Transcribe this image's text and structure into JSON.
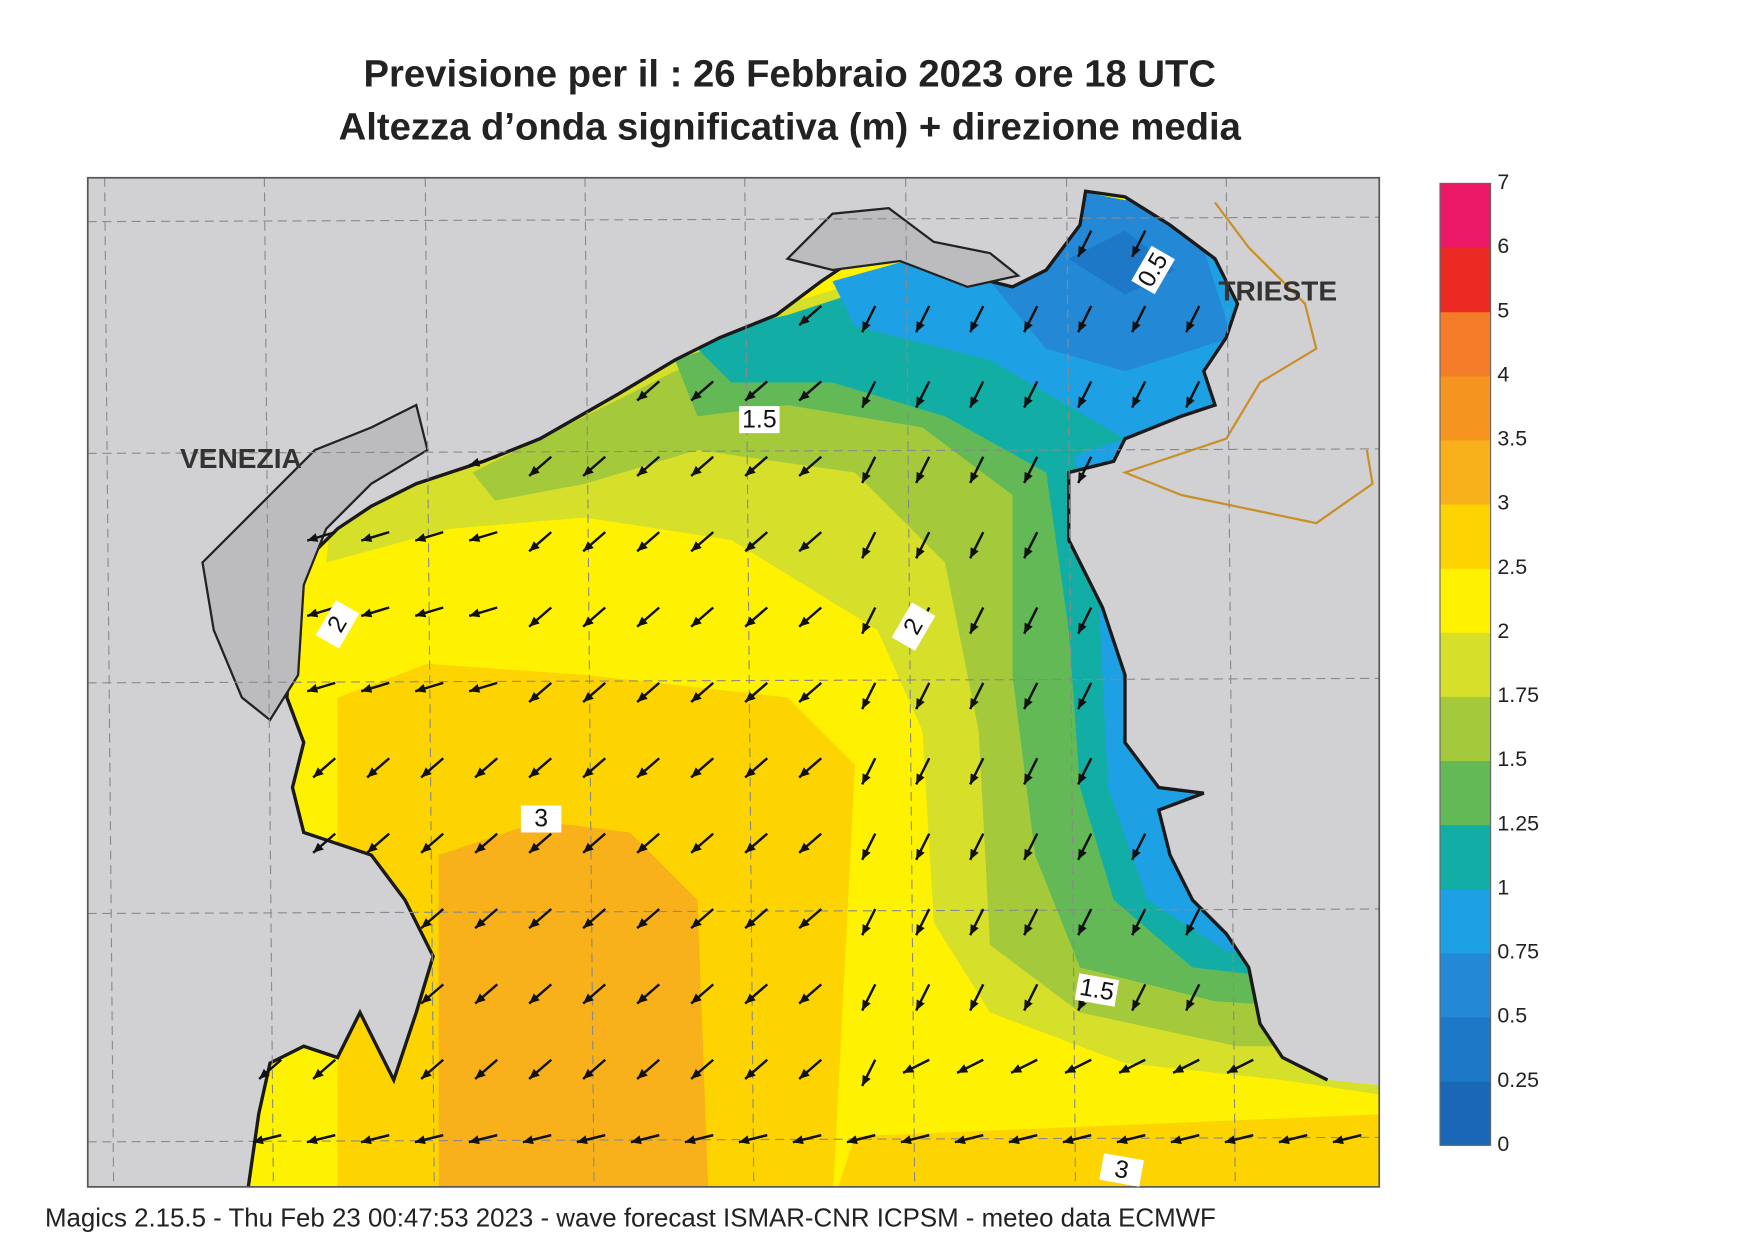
{
  "title": [
    "Previsione per il  :  26  Febbraio 2023   ore 18 UTC",
    "Altezza d’onda significativa (m) + direzione media"
  ],
  "places": [
    "VENEZIA",
    "TRIESTE"
  ],
  "contour_labels": [
    "0.5",
    "1.5",
    "2",
    "2",
    "3",
    "1.5",
    "3"
  ],
  "legend": {
    "ticks": [
      "0",
      "0.25",
      "0.5",
      "0.75",
      "1",
      "1.25",
      "1.5",
      "1.75",
      "2",
      "2.5",
      "3",
      "3.5",
      "4",
      "5",
      "6",
      "7"
    ],
    "colors": [
      "#1a67b8",
      "#1e78c8",
      "#2388d6",
      "#1ea0e4",
      "#12aea6",
      "#62b955",
      "#a4c93a",
      "#d6df2a",
      "#fff200",
      "#fdd300",
      "#f8b01b",
      "#f59520",
      "#f47b28",
      "#ec2a24",
      "#ea1867"
    ]
  },
  "footer": "Magics 2.15.5 - Thu Feb 23 00:47:53 2023 - wave forecast  ISMAR-CNR  ICPSM - meteo data   ECMWF"
}
